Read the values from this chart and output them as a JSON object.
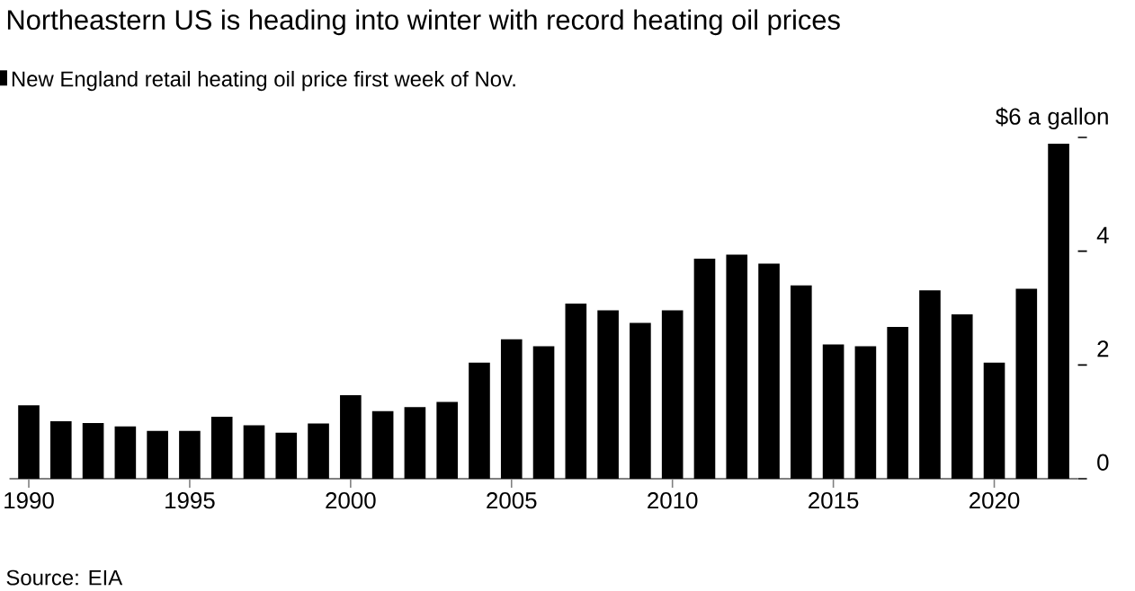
{
  "chart_data": {
    "type": "bar",
    "title": "Northeastern US is heading into winter with record heating oil prices",
    "categories": [
      "1990",
      null,
      null,
      null,
      null,
      "1995",
      null,
      null,
      null,
      null,
      "2000",
      null,
      null,
      null,
      null,
      "2005",
      null,
      null,
      null,
      null,
      "2010",
      null,
      null,
      null,
      null,
      "2015",
      null,
      null,
      null,
      null,
      "2020",
      null,
      null
    ],
    "series": [
      {
        "name": "New England retail heating oil price first week of Nov.",
        "color": "#000000",
        "values": [
          1.29,
          1.01,
          0.98,
          0.92,
          0.84,
          0.84,
          1.09,
          0.94,
          0.81,
          0.97,
          1.47,
          1.19,
          1.26,
          1.35,
          2.04,
          2.45,
          2.33,
          3.08,
          2.96,
          2.74,
          2.96,
          3.87,
          3.94,
          3.78,
          3.4,
          2.36,
          2.33,
          2.67,
          3.31,
          2.89,
          2.04,
          3.34,
          5.89
        ]
      }
    ],
    "ylim": [
      0,
      6
    ],
    "yticks": [
      0,
      2,
      4,
      {
        "value": 6,
        "label": "$6 a gallon"
      }
    ],
    "legend": "top left",
    "annotations": [
      "Source: EIA"
    ]
  }
}
